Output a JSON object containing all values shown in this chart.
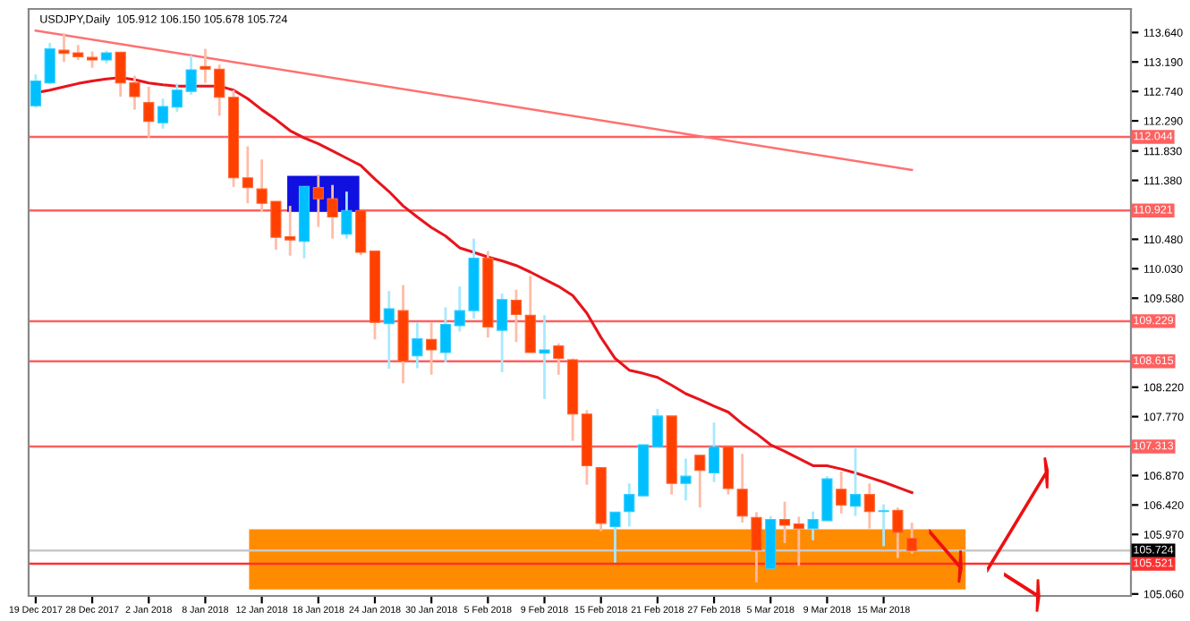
{
  "chart_data": {
    "type": "candlestick",
    "title": "USDJPY,Daily  105.912 106.150 105.678 105.724",
    "categories": [
      "19 Dec 2017",
      null,
      null,
      null,
      "28 Dec 2017",
      null,
      null,
      null,
      "2 Jan 2018",
      null,
      null,
      null,
      "8 Jan 2018",
      null,
      null,
      null,
      "12 Jan 2018",
      null,
      null,
      null,
      "18 Jan 2018",
      null,
      null,
      null,
      "24 Jan 2018",
      null,
      null,
      null,
      "30 Jan 2018",
      null,
      null,
      null,
      "5 Feb 2018",
      null,
      null,
      null,
      "9 Feb 2018",
      null,
      null,
      null,
      "15 Feb 2018",
      null,
      null,
      null,
      "21 Feb 2018",
      null,
      null,
      null,
      "27 Feb 2018",
      null,
      null,
      null,
      "5 Mar 2018",
      null,
      null,
      null,
      "9 Mar 2018",
      null,
      null,
      null,
      "15 Mar 2018",
      null,
      null
    ],
    "ohlc": [
      [
        112.52,
        113.0,
        112.49,
        112.9
      ],
      [
        112.87,
        113.48,
        112.85,
        113.39
      ],
      [
        113.37,
        113.63,
        113.19,
        113.32
      ],
      [
        113.33,
        113.45,
        113.22,
        113.27
      ],
      [
        113.26,
        113.35,
        113.1,
        113.22
      ],
      [
        113.22,
        113.36,
        113.17,
        113.33
      ],
      [
        113.34,
        113.34,
        112.66,
        112.87
      ],
      [
        112.87,
        112.98,
        112.46,
        112.66
      ],
      [
        112.57,
        112.81,
        112.03,
        112.28
      ],
      [
        112.26,
        112.63,
        112.17,
        112.51
      ],
      [
        112.5,
        112.86,
        112.43,
        112.76
      ],
      [
        112.74,
        113.29,
        112.69,
        113.07
      ],
      [
        113.12,
        113.39,
        112.87,
        113.08
      ],
      [
        113.08,
        113.15,
        112.37,
        112.65
      ],
      [
        112.65,
        112.76,
        111.28,
        111.42
      ],
      [
        111.42,
        111.9,
        111.03,
        111.27
      ],
      [
        111.25,
        111.7,
        110.9,
        111.03
      ],
      [
        111.06,
        111.06,
        110.32,
        110.51
      ],
      [
        110.52,
        110.99,
        110.23,
        110.47
      ],
      [
        110.45,
        111.29,
        110.19,
        111.29
      ],
      [
        111.27,
        111.47,
        110.67,
        111.1
      ],
      [
        111.1,
        111.31,
        110.49,
        110.82
      ],
      [
        110.56,
        111.21,
        110.49,
        110.92
      ],
      [
        110.92,
        110.92,
        110.24,
        110.28
      ],
      [
        110.3,
        110.3,
        108.95,
        109.21
      ],
      [
        109.19,
        109.69,
        108.5,
        109.42
      ],
      [
        109.39,
        109.78,
        108.28,
        108.62
      ],
      [
        108.7,
        109.21,
        108.51,
        108.96
      ],
      [
        108.95,
        109.21,
        108.41,
        108.79
      ],
      [
        108.75,
        109.44,
        108.6,
        109.18
      ],
      [
        109.16,
        109.76,
        109.07,
        109.39
      ],
      [
        109.39,
        110.49,
        109.27,
        110.19
      ],
      [
        110.19,
        110.3,
        108.98,
        109.14
      ],
      [
        109.09,
        109.65,
        108.45,
        109.56
      ],
      [
        109.55,
        109.71,
        108.91,
        109.33
      ],
      [
        109.32,
        109.92,
        108.75,
        108.75
      ],
      [
        108.74,
        109.32,
        108.04,
        108.79
      ],
      [
        108.85,
        108.89,
        108.41,
        108.66
      ],
      [
        108.64,
        108.66,
        107.4,
        107.81
      ],
      [
        107.81,
        107.87,
        106.73,
        107.02
      ],
      [
        106.99,
        106.99,
        106.02,
        106.14
      ],
      [
        106.09,
        106.31,
        105.54,
        106.31
      ],
      [
        106.32,
        106.75,
        106.09,
        106.58
      ],
      [
        106.56,
        107.34,
        106.55,
        107.34
      ],
      [
        107.31,
        107.89,
        107.31,
        107.78
      ],
      [
        107.78,
        107.78,
        106.58,
        106.75
      ],
      [
        106.75,
        107.13,
        106.49,
        106.86
      ],
      [
        107.18,
        107.18,
        106.38,
        106.95
      ],
      [
        106.91,
        107.68,
        106.77,
        107.31
      ],
      [
        107.31,
        107.31,
        106.58,
        106.67
      ],
      [
        106.66,
        107.2,
        106.15,
        106.25
      ],
      [
        106.23,
        106.31,
        105.24,
        105.73
      ],
      [
        105.45,
        106.25,
        105.45,
        106.2
      ],
      [
        106.2,
        106.47,
        105.84,
        106.11
      ],
      [
        106.13,
        106.24,
        105.49,
        106.06
      ],
      [
        106.06,
        106.32,
        105.88,
        106.2
      ],
      [
        106.18,
        106.86,
        106.18,
        106.82
      ],
      [
        106.66,
        106.93,
        106.29,
        106.42
      ],
      [
        106.4,
        107.29,
        106.25,
        106.58
      ],
      [
        106.58,
        106.75,
        106.06,
        106.32
      ],
      [
        106.32,
        106.43,
        105.79,
        106.33
      ],
      [
        106.34,
        106.38,
        105.61,
        106.0
      ],
      [
        105.912,
        106.15,
        105.678,
        105.724
      ]
    ],
    "colors": [
      "#00bfff",
      "#00bfff",
      "#ff4000",
      "#ff4000",
      "#ff4000",
      "#00bfff",
      "#ff4000",
      "#ff4000",
      "#ff4000",
      "#00bfff",
      "#00bfff",
      "#00bfff",
      "#ff4000",
      "#ff4000",
      "#ff4000",
      "#ff4000",
      "#ff4000",
      "#ff4000",
      "#ff4000",
      "#00bfff",
      "#ff4000",
      "#ff4000",
      "#00bfff",
      "#ff4000",
      "#ff4000",
      "#00bfff",
      "#ff4000",
      "#00bfff",
      "#ff4000",
      "#00bfff",
      "#00bfff",
      "#00bfff",
      "#ff4000",
      "#00bfff",
      "#ff4000",
      "#ff4000",
      "#00bfff",
      "#ff4000",
      "#ff4000",
      "#ff4000",
      "#ff4000",
      "#00bfff",
      "#00bfff",
      "#00bfff",
      "#00bfff",
      "#ff4000",
      "#00bfff",
      "#ff4000",
      "#00bfff",
      "#ff4000",
      "#ff4000",
      "#ff4000",
      "#00bfff",
      "#ff4000",
      "#ff4000",
      "#00bfff",
      "#00bfff",
      "#ff4000",
      "#00bfff",
      "#ff4000",
      "#00bfff",
      "#ff4000",
      "#ff4000"
    ],
    "series": [
      {
        "type": "line",
        "color": "#e8141c",
        "values": [
          112.72,
          112.76,
          112.81,
          112.86,
          112.9,
          112.93,
          112.95,
          112.92,
          112.87,
          112.84,
          112.82,
          112.82,
          112.82,
          112.82,
          112.76,
          112.63,
          112.46,
          112.31,
          112.14,
          112.03,
          111.94,
          111.83,
          111.72,
          111.61,
          111.4,
          111.21,
          110.99,
          110.82,
          110.66,
          110.53,
          110.35,
          110.28,
          110.21,
          110.15,
          110.08,
          109.98,
          109.87,
          109.76,
          109.62,
          109.35,
          108.98,
          108.66,
          108.48,
          108.43,
          108.37,
          108.25,
          108.12,
          108.03,
          107.93,
          107.84,
          107.66,
          107.51,
          107.34,
          107.24,
          107.13,
          107.02,
          107.02,
          106.97,
          106.91,
          106.84,
          106.77,
          106.69,
          106.61
        ]
      },
      {
        "type": "line",
        "color": "#ff7070",
        "values": [
          113.67,
          null,
          null,
          null,
          null,
          null,
          null,
          null,
          null,
          null,
          null,
          null,
          null,
          null,
          null,
          null,
          null,
          null,
          null,
          null,
          null,
          null,
          null,
          null,
          null,
          null,
          null,
          null,
          null,
          null,
          null,
          null,
          null,
          null,
          null,
          null,
          null,
          null,
          null,
          null,
          null,
          null,
          null,
          null,
          null,
          null,
          null,
          null,
          null,
          null,
          null,
          null,
          null,
          null,
          null,
          null,
          null,
          null,
          null,
          null,
          null,
          null,
          111.54
        ]
      }
    ],
    "ylim": [
      105.03,
      114.0
    ],
    "yticks": [
      {
        "value": 113.64,
        "label": "113.640"
      },
      {
        "value": 113.19,
        "label": "113.190"
      },
      {
        "value": 112.74,
        "label": "112.740"
      },
      {
        "value": 112.29,
        "label": "112.290"
      },
      {
        "value": 111.83,
        "label": "111.830"
      },
      {
        "value": 111.38,
        "label": "111.380"
      },
      {
        "value": 110.48,
        "label": "110.480"
      },
      {
        "value": 110.03,
        "label": "110.030"
      },
      {
        "value": 109.58,
        "label": "109.580"
      },
      {
        "value": 108.22,
        "label": "108.220"
      },
      {
        "value": 107.77,
        "label": "107.770"
      },
      {
        "value": 106.87,
        "label": "106.870"
      },
      {
        "value": 106.42,
        "label": "106.420"
      },
      {
        "value": 105.97,
        "label": "105.970"
      },
      {
        "value": 105.06,
        "label": "105.060"
      }
    ],
    "ref_lines": [
      {
        "axis": "y",
        "value": 112.044,
        "label": "112.044",
        "color": "#ff6060"
      },
      {
        "axis": "y",
        "value": 110.921,
        "label": "110.921",
        "color": "#ff6060"
      },
      {
        "axis": "y",
        "value": 109.229,
        "label": "109.229",
        "color": "#ff6060"
      },
      {
        "axis": "y",
        "value": 108.615,
        "label": "108.615",
        "color": "#ff6060"
      },
      {
        "axis": "y",
        "value": 107.313,
        "label": "107.313",
        "color": "#ff6060"
      },
      {
        "axis": "y",
        "value": 105.724,
        "label": "105.724",
        "color": "#c8c8c8"
      },
      {
        "axis": "y",
        "value": 105.521,
        "label": "105.521",
        "color": "#ff3030"
      }
    ],
    "bands": [
      {
        "axis": "y",
        "from": 105.13,
        "to": 106.05,
        "color": "#ff8c00"
      }
    ],
    "grid": false,
    "legend": false
  }
}
